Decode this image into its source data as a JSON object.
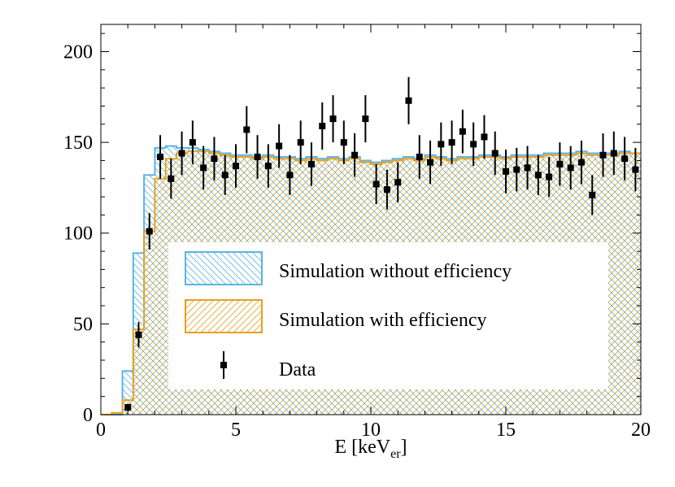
{
  "chart_data": {
    "type": "histogram",
    "title": "",
    "xlabel": "E [keV",
    "xlabel_sub": "er",
    "xlabel_end": "]",
    "ylabel": "",
    "xlim": [
      0,
      20
    ],
    "ylim": [
      0,
      215
    ],
    "x_ticks": [
      0,
      5,
      10,
      15,
      20
    ],
    "y_ticks": [
      0,
      50,
      100,
      150,
      200
    ],
    "bin_edges": [
      0,
      0.4,
      0.8,
      1.2,
      1.6,
      2.0,
      2.4,
      2.8,
      3.2,
      3.6,
      4.0,
      4.4,
      4.8,
      5.2,
      5.6,
      6.0,
      6.4,
      6.8,
      7.2,
      7.6,
      8.0,
      8.4,
      8.8,
      9.2,
      9.6,
      10.0,
      10.4,
      10.8,
      11.2,
      11.6,
      12.0,
      12.4,
      12.8,
      13.2,
      13.6,
      14.0,
      14.4,
      14.8,
      15.2,
      15.6,
      16.0,
      16.4,
      16.8,
      17.2,
      17.6,
      18.0,
      18.4,
      18.8,
      19.2,
      19.6,
      20.0
    ],
    "series": [
      {
        "name": "Simulation without efficiency",
        "color": "#5ab4e6",
        "hatch": "diagonal-down",
        "values": [
          0,
          0,
          24,
          89,
          132,
          147,
          148,
          147,
          147,
          146,
          145,
          144,
          143,
          143,
          142,
          143,
          142,
          142,
          141,
          142,
          141,
          142,
          141,
          142,
          140,
          139,
          140,
          141,
          142,
          141,
          143,
          142,
          141,
          142,
          142,
          143,
          143,
          142,
          143,
          143,
          143,
          144,
          144,
          144,
          145,
          144,
          144,
          144,
          145,
          144
        ]
      },
      {
        "name": "Simulation with efficiency",
        "color": "#e6a020",
        "hatch": "diagonal-up",
        "values": [
          0,
          1,
          8,
          47,
          101,
          130,
          141,
          144,
          145,
          145,
          144,
          143,
          142,
          142,
          141,
          142,
          141,
          141,
          140,
          141,
          140,
          141,
          140,
          141,
          139,
          138,
          139,
          140,
          141,
          140,
          142,
          141,
          140,
          141,
          141,
          142,
          142,
          141,
          142,
          142,
          142,
          143,
          143,
          143,
          144,
          143,
          143,
          143,
          144,
          144
        ]
      }
    ],
    "data_points": {
      "name": "Data",
      "x": [
        1.0,
        1.4,
        1.8,
        2.2,
        2.6,
        3.0,
        3.4,
        3.8,
        4.2,
        4.6,
        5.0,
        5.4,
        5.8,
        6.2,
        6.6,
        7.0,
        7.4,
        7.8,
        8.2,
        8.6,
        9.0,
        9.4,
        9.8,
        10.2,
        10.6,
        11.0,
        11.4,
        11.8,
        12.2,
        12.6,
        13.0,
        13.4,
        13.8,
        14.2,
        14.6,
        15.0,
        15.4,
        15.8,
        16.2,
        16.6,
        17.0,
        17.4,
        17.8,
        18.2,
        18.6,
        19.0,
        19.4,
        19.8
      ],
      "y": [
        4,
        44,
        101,
        142,
        130,
        144,
        150,
        136,
        141,
        132,
        137,
        157,
        142,
        137,
        148,
        132,
        150,
        138,
        159,
        163,
        150,
        143,
        163,
        127,
        124,
        128,
        173,
        142,
        139,
        149,
        150,
        156,
        149,
        153,
        144,
        134,
        135,
        136,
        132,
        131,
        138,
        136,
        139,
        121,
        143,
        144,
        141,
        135
      ],
      "yerr": [
        2,
        7,
        10,
        12,
        11,
        12,
        12,
        12,
        12,
        11,
        12,
        13,
        12,
        12,
        12,
        11,
        12,
        12,
        13,
        13,
        12,
        12,
        13,
        11,
        11,
        11,
        13,
        12,
        12,
        12,
        12,
        12,
        12,
        12,
        12,
        12,
        12,
        12,
        11,
        11,
        12,
        12,
        12,
        11,
        12,
        12,
        12,
        12
      ]
    },
    "legend": {
      "position": "center",
      "entries": [
        "Simulation without efficiency",
        "Simulation with efficiency",
        "Data"
      ]
    },
    "grid": false
  }
}
